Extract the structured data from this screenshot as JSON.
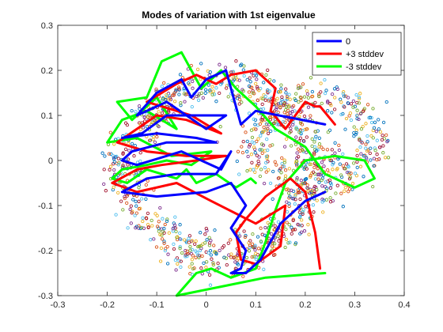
{
  "chart_data": {
    "type": "line",
    "title": "Modes of variation with 1st eigenvalue",
    "xlabel": "",
    "ylabel": "",
    "xlim": [
      -0.3,
      0.4
    ],
    "ylim": [
      -0.3,
      0.3
    ],
    "xticks": [
      "-0.3",
      "-0.2",
      "-0.1",
      "0",
      "0.1",
      "0.2",
      "0.3",
      "0.4"
    ],
    "yticks": [
      "-0.3",
      "-0.2",
      "-0.1",
      "0",
      "0.1",
      "0.2",
      "0.3"
    ],
    "grid": false,
    "legend_position": "top-right",
    "series": [
      {
        "name": "0",
        "color": "#0000ff",
        "x": [
          0.24,
          0.1,
          0.07,
          0.04,
          0.0,
          -0.03,
          -0.05,
          -0.1,
          -0.14,
          -0.08,
          0.0,
          0.04,
          -0.08,
          -0.13,
          -0.17,
          -0.1,
          -0.02,
          0.02,
          -0.08,
          -0.15,
          -0.17,
          -0.14,
          -0.05,
          0.03,
          0.05,
          0.02,
          -0.06,
          -0.12,
          -0.17,
          -0.1,
          0.0,
          0.05,
          0.08,
          0.05,
          0.08,
          0.07,
          0.05,
          0.08,
          0.11,
          0.15,
          0.2,
          0.24
        ],
        "y": [
          0.08,
          0.11,
          0.08,
          0.2,
          0.18,
          0.14,
          0.18,
          0.15,
          0.1,
          0.13,
          0.07,
          0.1,
          0.1,
          0.06,
          0.05,
          0.06,
          0.05,
          0.04,
          0.04,
          0.02,
          0.0,
          -0.01,
          0.02,
          -0.02,
          0.02,
          -0.03,
          -0.03,
          -0.04,
          -0.07,
          -0.08,
          -0.07,
          -0.05,
          -0.1,
          -0.15,
          -0.2,
          -0.24,
          -0.25,
          -0.25,
          -0.22,
          -0.14,
          -0.09,
          -0.07
        ]
      },
      {
        "name": "+3 stddev",
        "color": "#ff0000",
        "x": [
          0.26,
          0.23,
          0.22,
          0.2,
          0.16,
          0.13,
          0.14,
          0.1,
          0.05,
          0.02,
          -0.02,
          -0.06,
          -0.09,
          -0.12,
          -0.03,
          0.03,
          -0.04,
          -0.1,
          -0.14,
          -0.18,
          -0.12,
          -0.04,
          0.04,
          -0.02,
          -0.09,
          -0.14,
          -0.19,
          -0.14,
          -0.06,
          0.01,
          0.1,
          0.16,
          0.15,
          0.1,
          0.07,
          0.06,
          0.08,
          0.12,
          0.17,
          0.2,
          0.22,
          0.23
        ],
        "y": [
          0.08,
          0.12,
          0.12,
          0.13,
          0.07,
          0.11,
          0.16,
          0.2,
          0.19,
          0.17,
          0.19,
          0.17,
          0.15,
          0.13,
          0.1,
          0.06,
          0.09,
          0.1,
          0.07,
          0.04,
          0.02,
          0.01,
          0.01,
          0.0,
          -0.01,
          -0.02,
          -0.05,
          -0.07,
          -0.05,
          -0.09,
          -0.14,
          -0.1,
          -0.19,
          -0.23,
          -0.22,
          -0.16,
          -0.13,
          -0.08,
          -0.04,
          -0.07,
          -0.16,
          -0.24
        ]
      },
      {
        "name": "-3 stddev",
        "color": "#00ff00",
        "x": [
          0.24,
          0.12,
          0.03,
          -0.06,
          -0.02,
          0.01,
          0.05,
          0.1,
          0.12,
          0.14,
          0.16,
          0.2,
          0.26,
          0.32,
          0.34,
          0.3,
          0.24,
          0.2,
          0.14,
          0.1,
          0.06,
          0.03,
          -0.01,
          -0.03,
          -0.05,
          -0.09,
          -0.12,
          -0.18,
          -0.15,
          -0.1,
          -0.06,
          -0.12,
          -0.17,
          -0.2,
          -0.14,
          -0.07,
          0.01,
          -0.03,
          -0.08,
          -0.12,
          -0.17,
          -0.19,
          -0.16,
          -0.12,
          -0.06,
          -0.04,
          -0.02,
          0.02,
          0.06,
          0.09,
          0.1
        ],
        "y": [
          -0.25,
          -0.26,
          -0.28,
          -0.3,
          -0.25,
          -0.24,
          -0.26,
          -0.24,
          -0.18,
          -0.11,
          -0.05,
          0.0,
          0.01,
          0.0,
          -0.04,
          -0.06,
          -0.03,
          0.03,
          0.07,
          0.12,
          0.16,
          0.2,
          0.16,
          0.2,
          0.24,
          0.22,
          0.14,
          0.13,
          0.09,
          0.14,
          0.07,
          0.11,
          0.09,
          0.04,
          0.05,
          0.01,
          0.02,
          -0.01,
          0.0,
          -0.01,
          -0.02,
          -0.04,
          -0.05,
          -0.02,
          -0.04,
          -0.02,
          -0.05,
          -0.03,
          -0.06,
          -0.04,
          -0.05
        ]
      }
    ]
  }
}
